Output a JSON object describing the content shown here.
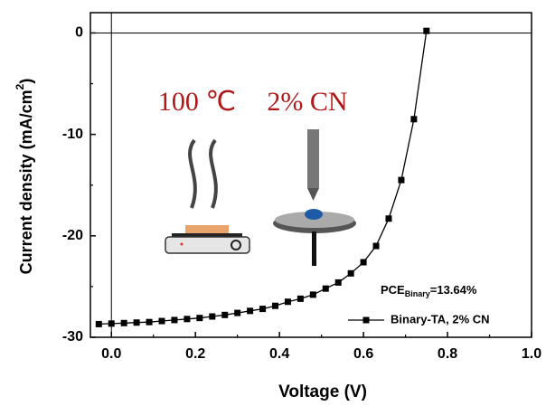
{
  "chart_data": {
    "type": "line",
    "xlabel": "Voltage (V)",
    "ylabel": {
      "text": "Current density (mA/cm",
      "superscript": "2",
      "suffix": ")"
    },
    "x": [
      -0.03,
      0.0,
      0.03,
      0.06,
      0.09,
      0.12,
      0.15,
      0.18,
      0.21,
      0.24,
      0.27,
      0.3,
      0.33,
      0.36,
      0.39,
      0.42,
      0.45,
      0.48,
      0.51,
      0.54,
      0.57,
      0.6,
      0.63,
      0.66,
      0.69,
      0.72,
      0.75
    ],
    "series": [
      {
        "name": "Binary-TA, 2% CN",
        "color": "#000000",
        "values": [
          -28.7,
          -28.65,
          -28.6,
          -28.55,
          -28.5,
          -28.4,
          -28.3,
          -28.2,
          -28.1,
          -27.95,
          -27.8,
          -27.6,
          -27.4,
          -27.2,
          -26.9,
          -26.5,
          -26.2,
          -25.8,
          -25.2,
          -24.6,
          -23.7,
          -22.6,
          -21.0,
          -18.3,
          -14.5,
          -8.5,
          0.2
        ]
      }
    ],
    "xlim": [
      -0.05,
      1.0
    ],
    "ylim": [
      -30,
      2
    ],
    "xticks": [
      {
        "value": 0,
        "label": "0.0"
      },
      {
        "value": 0.2,
        "label": "0.2"
      },
      {
        "value": 0.4,
        "label": "0.4"
      },
      {
        "value": 0.6,
        "label": "0.6"
      },
      {
        "value": 0.8,
        "label": "0.8"
      },
      {
        "value": 1,
        "label": "1.0"
      }
    ],
    "yticks": [
      0,
      -10,
      -20,
      -30
    ],
    "xminor_ticks": [
      0.1,
      0.3,
      0.5,
      0.7,
      0.9
    ],
    "yminor_ticks": [
      -5,
      -15,
      -25
    ],
    "zero_lines": true,
    "annotation": {
      "main": "PCE",
      "sub": "Binary",
      "rest": "=13.64%"
    },
    "insets": [
      "100 ℃",
      "2% CN"
    ]
  }
}
